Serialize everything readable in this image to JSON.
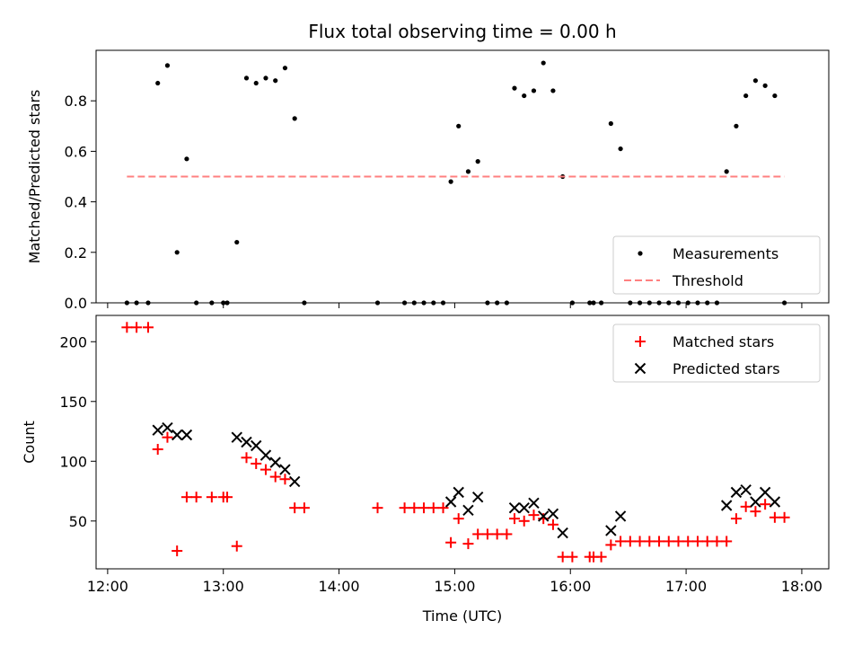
{
  "chart_data": {
    "title": "Flux total observing time = 0.00 h",
    "xlabel": "Time (UTC)",
    "x_ticks": [
      "12:00",
      "13:00",
      "14:00",
      "15:00",
      "16:00",
      "17:00",
      "18:00"
    ],
    "xlim": [
      "11:54",
      "18:14"
    ],
    "panels": [
      {
        "type": "scatter",
        "ylabel": "Matched/Predicted stars",
        "ylim": [
          0,
          1.0
        ],
        "y_ticks": [
          "0.0",
          "0.2",
          "0.4",
          "0.6",
          "0.8"
        ],
        "legend": "bottom-right",
        "series": [
          {
            "name": "Measurements",
            "marker": "dot",
            "color": "#000000",
            "points": [
              [
                "12:10",
                0.0
              ],
              [
                "12:15",
                0.0
              ],
              [
                "12:21",
                0.0
              ],
              [
                "12:26",
                0.87
              ],
              [
                "12:31",
                0.94
              ],
              [
                "12:36",
                0.2
              ],
              [
                "12:41",
                0.57
              ],
              [
                "12:46",
                0.0
              ],
              [
                "12:54",
                0.0
              ],
              [
                "13:00",
                0.0
              ],
              [
                "13:02",
                0.0
              ],
              [
                "13:07",
                0.24
              ],
              [
                "13:12",
                0.89
              ],
              [
                "13:17",
                0.87
              ],
              [
                "13:22",
                0.89
              ],
              [
                "13:27",
                0.88
              ],
              [
                "13:32",
                0.93
              ],
              [
                "13:37",
                0.73
              ],
              [
                "13:42",
                0.0
              ],
              [
                "14:20",
                0.0
              ],
              [
                "14:34",
                0.0
              ],
              [
                "14:39",
                0.0
              ],
              [
                "14:44",
                0.0
              ],
              [
                "14:49",
                0.0
              ],
              [
                "14:54",
                0.0
              ],
              [
                "14:58",
                0.48
              ],
              [
                "15:02",
                0.7
              ],
              [
                "15:07",
                0.52
              ],
              [
                "15:12",
                0.56
              ],
              [
                "15:17",
                0.0
              ],
              [
                "15:22",
                0.0
              ],
              [
                "15:27",
                0.0
              ],
              [
                "15:31",
                0.85
              ],
              [
                "15:36",
                0.82
              ],
              [
                "15:41",
                0.84
              ],
              [
                "15:46",
                0.95
              ],
              [
                "15:51",
                0.84
              ],
              [
                "15:56",
                0.5
              ],
              [
                "16:01",
                0.0
              ],
              [
                "16:10",
                0.0
              ],
              [
                "16:12",
                0.0
              ],
              [
                "16:16",
                0.0
              ],
              [
                "16:21",
                0.71
              ],
              [
                "16:26",
                0.61
              ],
              [
                "16:31",
                0.0
              ],
              [
                "16:36",
                0.0
              ],
              [
                "16:41",
                0.0
              ],
              [
                "16:46",
                0.0
              ],
              [
                "16:51",
                0.0
              ],
              [
                "16:56",
                0.0
              ],
              [
                "17:01",
                0.0
              ],
              [
                "17:06",
                0.0
              ],
              [
                "17:11",
                0.0
              ],
              [
                "17:16",
                0.0
              ],
              [
                "17:21",
                0.52
              ],
              [
                "17:26",
                0.7
              ],
              [
                "17:31",
                0.82
              ],
              [
                "17:36",
                0.88
              ],
              [
                "17:41",
                0.86
              ],
              [
                "17:46",
                0.82
              ],
              [
                "17:51",
                0.0
              ]
            ]
          },
          {
            "name": "Threshold",
            "type": "line",
            "style": "dashed",
            "color": "#ff8080",
            "points": [
              [
                "12:10",
                0.5
              ],
              [
                "17:51",
                0.5
              ]
            ]
          }
        ]
      },
      {
        "type": "scatter",
        "ylabel": "Count",
        "ylim": [
          10,
          222
        ],
        "y_ticks": [
          "50",
          "100",
          "150",
          "200"
        ],
        "legend": "top-right",
        "series": [
          {
            "name": "Matched stars",
            "marker": "plus",
            "color": "#ff0000",
            "points": [
              [
                "12:10",
                212
              ],
              [
                "12:15",
                212
              ],
              [
                "12:21",
                212
              ],
              [
                "12:26",
                110
              ],
              [
                "12:31",
                120
              ],
              [
                "12:36",
                25
              ],
              [
                "12:41",
                70
              ],
              [
                "12:46",
                70
              ],
              [
                "12:54",
                70
              ],
              [
                "13:00",
                70
              ],
              [
                "13:02",
                70
              ],
              [
                "13:07",
                29
              ],
              [
                "13:12",
                103
              ],
              [
                "13:17",
                98
              ],
              [
                "13:22",
                93
              ],
              [
                "13:27",
                87
              ],
              [
                "13:32",
                85
              ],
              [
                "13:37",
                61
              ],
              [
                "13:42",
                61
              ],
              [
                "14:20",
                61
              ],
              [
                "14:34",
                61
              ],
              [
                "14:39",
                61
              ],
              [
                "14:44",
                61
              ],
              [
                "14:49",
                61
              ],
              [
                "14:54",
                61
              ],
              [
                "14:58",
                32
              ],
              [
                "15:02",
                52
              ],
              [
                "15:07",
                31
              ],
              [
                "15:12",
                39
              ],
              [
                "15:17",
                39
              ],
              [
                "15:22",
                39
              ],
              [
                "15:27",
                39
              ],
              [
                "15:31",
                52
              ],
              [
                "15:36",
                50
              ],
              [
                "15:41",
                55
              ],
              [
                "15:46",
                52
              ],
              [
                "15:51",
                47
              ],
              [
                "15:56",
                20
              ],
              [
                "16:01",
                20
              ],
              [
                "16:10",
                20
              ],
              [
                "16:12",
                20
              ],
              [
                "16:16",
                20
              ],
              [
                "16:21",
                30
              ],
              [
                "16:26",
                33
              ],
              [
                "16:31",
                33
              ],
              [
                "16:36",
                33
              ],
              [
                "16:41",
                33
              ],
              [
                "16:46",
                33
              ],
              [
                "16:51",
                33
              ],
              [
                "16:56",
                33
              ],
              [
                "17:01",
                33
              ],
              [
                "17:06",
                33
              ],
              [
                "17:11",
                33
              ],
              [
                "17:16",
                33
              ],
              [
                "17:21",
                33
              ],
              [
                "17:26",
                52
              ],
              [
                "17:31",
                62
              ],
              [
                "17:36",
                58
              ],
              [
                "17:41",
                64
              ],
              [
                "17:46",
                53
              ],
              [
                "17:51",
                53
              ]
            ]
          },
          {
            "name": "Predicted stars",
            "marker": "x",
            "color": "#000000",
            "points": [
              [
                "12:26",
                126
              ],
              [
                "12:31",
                128
              ],
              [
                "12:36",
                122
              ],
              [
                "12:41",
                122
              ],
              [
                "13:07",
                120
              ],
              [
                "13:12",
                116
              ],
              [
                "13:17",
                113
              ],
              [
                "13:22",
                105
              ],
              [
                "13:27",
                99
              ],
              [
                "13:32",
                93
              ],
              [
                "13:37",
                83
              ],
              [
                "14:58",
                66
              ],
              [
                "15:02",
                74
              ],
              [
                "15:07",
                59
              ],
              [
                "15:12",
                70
              ],
              [
                "15:31",
                61
              ],
              [
                "15:36",
                61
              ],
              [
                "15:41",
                65
              ],
              [
                "15:46",
                54
              ],
              [
                "15:51",
                56
              ],
              [
                "15:56",
                40
              ],
              [
                "16:21",
                42
              ],
              [
                "16:26",
                54
              ],
              [
                "17:21",
                63
              ],
              [
                "17:26",
                74
              ],
              [
                "17:31",
                76
              ],
              [
                "17:36",
                66
              ],
              [
                "17:41",
                74
              ],
              [
                "17:46",
                66
              ]
            ]
          }
        ]
      }
    ]
  }
}
